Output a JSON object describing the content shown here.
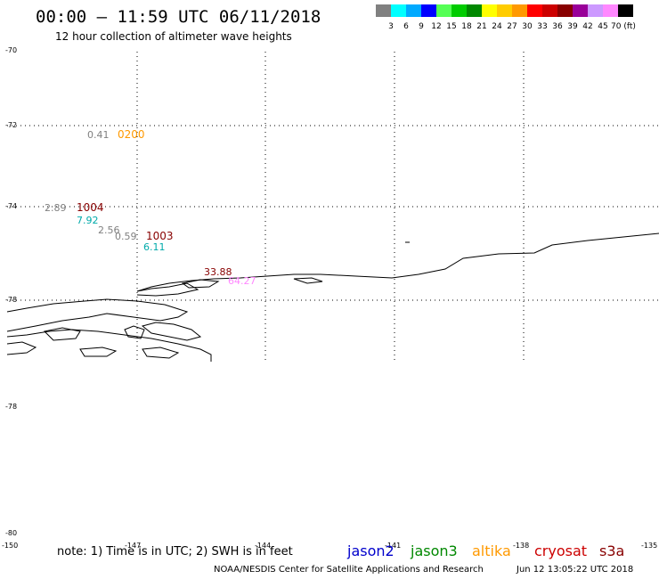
{
  "title": "00:00 – 11:59 UTC 06/11/2018",
  "subtitle": "12 hour collection of altimeter wave heights",
  "colorbar": {
    "colors": [
      "#808080",
      "#00ffff",
      "#00aaff",
      "#0000ff",
      "#55ff55",
      "#00cc00",
      "#008800",
      "#ffff00",
      "#ffcc00",
      "#ff9900",
      "#ff0000",
      "#cc0000",
      "#880000",
      "#990099",
      "#cc99ff",
      "#ff88ff",
      "#000000"
    ],
    "labels": [
      "3",
      "6",
      "9",
      "12",
      "15",
      "18",
      "21",
      "24",
      "27",
      "30",
      "33",
      "36",
      "39",
      "42",
      "45",
      "70 (ft)"
    ]
  },
  "lat_labels": [
    "-70",
    "-72",
    "-74",
    "-78",
    "-78",
    "-80"
  ],
  "lon_labels": [
    "-150",
    "-147",
    "-144",
    "-141",
    "-138",
    "-135"
  ],
  "observations": [
    {
      "time": "0200",
      "time_color": "#ff9900",
      "values": [
        {
          "text": "0.41",
          "color": "#808080"
        }
      ]
    },
    {
      "time": "1004",
      "time_color": "#880000",
      "values": [
        {
          "text": "2.89",
          "color": "#808080"
        },
        {
          "text": "7.92",
          "color": "#00aaaa"
        },
        {
          "text": "2.56",
          "color": "#808080"
        }
      ]
    },
    {
      "time": "1003",
      "time_color": "#880000",
      "values": [
        {
          "text": "0.59",
          "color": "#808080"
        },
        {
          "text": "6.11",
          "color": "#00aaaa"
        }
      ]
    },
    {
      "time": "",
      "time_color": "#880000",
      "values": [
        {
          "text": "33.88",
          "color": "#880000"
        },
        {
          "text": "64.27",
          "color": "#ff88ff"
        }
      ]
    }
  ],
  "note": "note: 1) Time is in UTC; 2) SWH is in feet",
  "satellites": [
    {
      "name": "jason2",
      "color": "#0000cc"
    },
    {
      "name": "jason3",
      "color": "#008800"
    },
    {
      "name": "altika",
      "color": "#ff9900"
    },
    {
      "name": "cryosat",
      "color": "#cc0000"
    },
    {
      "name": "s3a",
      "color": "#880000"
    }
  ],
  "credit": "NOAA/NESDIS Center for Satellite Applications and Research",
  "timestamp": "Jun 12 13:05:22 UTC 2018"
}
